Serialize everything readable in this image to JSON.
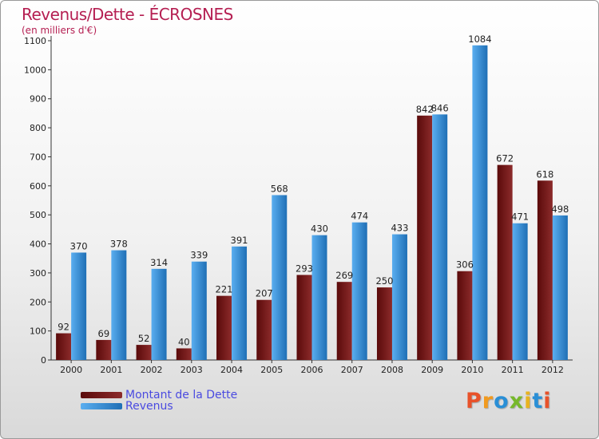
{
  "colors": {
    "dette_dark": "#5a0a0a",
    "dette_light": "#8c2b2b",
    "revenus_dark": "#1f6fb5",
    "revenus_light": "#5aaef0",
    "title": "#b51f52",
    "legend_text": "#4a4ae0"
  },
  "logo": {
    "text": "Proxiti",
    "letter_colors": [
      "#e8522a",
      "#f19a1f",
      "#2a8fd6",
      "#76b82a",
      "#e8b31f",
      "#2a8fd6",
      "#e8522a"
    ]
  },
  "chart_data": {
    "type": "bar",
    "title": "Revenus/Dette - ÉCROSNES",
    "subtitle": "(en milliers d'€)",
    "xlabel": "",
    "ylabel": "",
    "ylim": [
      0,
      1100
    ],
    "yticks": [
      0,
      100,
      200,
      300,
      400,
      500,
      600,
      700,
      800,
      900,
      1000,
      1100
    ],
    "grid": false,
    "legend_position": "bottom-left",
    "categories": [
      "2000",
      "2001",
      "2002",
      "2003",
      "2004",
      "2005",
      "2006",
      "2007",
      "2008",
      "2009",
      "2010",
      "2011",
      "2012"
    ],
    "series": [
      {
        "name": "Montant de la Dette",
        "values": [
          92,
          69,
          52,
          40,
          221,
          207,
          293,
          269,
          250,
          842,
          306,
          672,
          618
        ]
      },
      {
        "name": "Revenus",
        "values": [
          370,
          378,
          314,
          339,
          391,
          568,
          430,
          474,
          433,
          846,
          1084,
          471,
          498
        ]
      }
    ]
  }
}
